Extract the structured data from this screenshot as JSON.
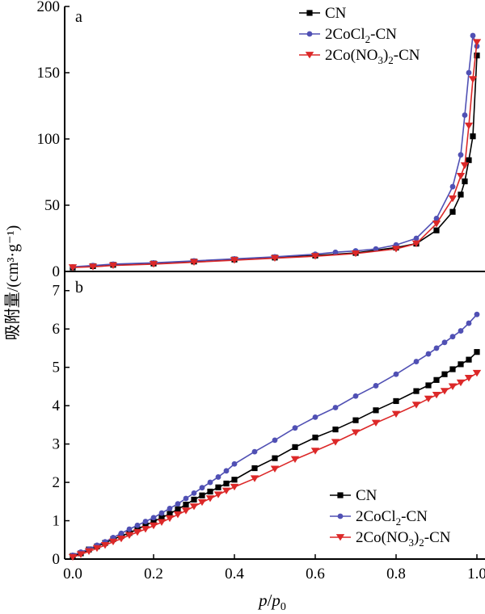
{
  "chart_data": [
    {
      "type": "line",
      "panel": "a",
      "xlabel": "p/p0",
      "ylabel": "吸附量/(cm³·g⁻¹)",
      "xlim": [
        -0.02,
        1.02
      ],
      "ylim": [
        0,
        200
      ],
      "yticks": [
        0,
        50,
        100,
        150,
        200
      ],
      "legend": "top-right",
      "series": [
        {
          "name": "CN",
          "color": "#000000",
          "marker": "square",
          "points": [
            [
              0.0,
              3
            ],
            [
              0.05,
              4
            ],
            [
              0.1,
              5
            ],
            [
              0.2,
              6
            ],
            [
              0.3,
              7.5
            ],
            [
              0.4,
              9
            ],
            [
              0.5,
              10.5
            ],
            [
              0.6,
              12
            ],
            [
              0.7,
              14
            ],
            [
              0.8,
              18
            ],
            [
              0.85,
              21
            ],
            [
              0.9,
              31
            ],
            [
              0.94,
              45
            ],
            [
              0.96,
              58
            ],
            [
              0.97,
              68
            ],
            [
              0.98,
              84
            ],
            [
              0.99,
              102
            ],
            [
              1.0,
              163
            ]
          ]
        },
        {
          "name": "2CoCl2-CN",
          "color": "#5050b4",
          "marker": "circle",
          "points": [
            [
              0.0,
              3.5
            ],
            [
              0.05,
              4.5
            ],
            [
              0.1,
              5.5
            ],
            [
              0.2,
              6.5
            ],
            [
              0.3,
              8
            ],
            [
              0.4,
              9.5
            ],
            [
              0.5,
              11
            ],
            [
              0.6,
              13
            ],
            [
              0.65,
              14.5
            ],
            [
              0.7,
              15.5
            ],
            [
              0.75,
              17
            ],
            [
              0.8,
              20
            ],
            [
              0.85,
              25
            ],
            [
              0.9,
              40
            ],
            [
              0.94,
              64
            ],
            [
              0.96,
              88
            ],
            [
              0.97,
              118
            ],
            [
              0.98,
              150
            ],
            [
              0.99,
              178
            ],
            [
              1.0,
              170
            ]
          ]
        },
        {
          "name": "2Co(NO3)2-CN",
          "color": "#dc2828",
          "marker": "triangle-down",
          "points": [
            [
              0.0,
              3
            ],
            [
              0.05,
              3.5
            ],
            [
              0.1,
              4.5
            ],
            [
              0.2,
              5.5
            ],
            [
              0.3,
              7
            ],
            [
              0.4,
              8.5
            ],
            [
              0.5,
              10
            ],
            [
              0.6,
              11.5
            ],
            [
              0.7,
              13.5
            ],
            [
              0.8,
              17
            ],
            [
              0.85,
              21
            ],
            [
              0.9,
              36
            ],
            [
              0.94,
              55
            ],
            [
              0.96,
              72
            ],
            [
              0.97,
              80
            ],
            [
              0.98,
              110
            ],
            [
              0.99,
              145
            ],
            [
              1.0,
              173
            ]
          ]
        }
      ]
    },
    {
      "type": "line",
      "panel": "b",
      "xlabel": "p/p0",
      "ylabel": "吸附量/(cm³·g⁻¹)",
      "xlim": [
        -0.02,
        1.02
      ],
      "ylim": [
        0,
        7.5
      ],
      "xticks": [
        0.0,
        0.2,
        0.4,
        0.6,
        0.8,
        1.0
      ],
      "xtick_labels": [
        "0.0",
        "0.2",
        "0.4",
        "0.6",
        "0.8",
        "1.0"
      ],
      "yticks": [
        0,
        1,
        2,
        3,
        4,
        5,
        6,
        7
      ],
      "legend": "bottom-right",
      "series": [
        {
          "name": "CN",
          "color": "#000000",
          "marker": "square",
          "points": [
            [
              0.0,
              0.08
            ],
            [
              0.02,
              0.15
            ],
            [
              0.04,
              0.25
            ],
            [
              0.06,
              0.33
            ],
            [
              0.08,
              0.42
            ],
            [
              0.1,
              0.52
            ],
            [
              0.12,
              0.6
            ],
            [
              0.14,
              0.68
            ],
            [
              0.16,
              0.78
            ],
            [
              0.18,
              0.88
            ],
            [
              0.2,
              0.98
            ],
            [
              0.22,
              1.08
            ],
            [
              0.24,
              1.18
            ],
            [
              0.26,
              1.3
            ],
            [
              0.28,
              1.42
            ],
            [
              0.3,
              1.55
            ],
            [
              0.32,
              1.66
            ],
            [
              0.34,
              1.76
            ],
            [
              0.36,
              1.87
            ],
            [
              0.38,
              1.97
            ],
            [
              0.4,
              2.07
            ],
            [
              0.45,
              2.37
            ],
            [
              0.5,
              2.63
            ],
            [
              0.55,
              2.92
            ],
            [
              0.6,
              3.17
            ],
            [
              0.65,
              3.38
            ],
            [
              0.7,
              3.62
            ],
            [
              0.75,
              3.88
            ],
            [
              0.8,
              4.12
            ],
            [
              0.85,
              4.38
            ],
            [
              0.88,
              4.53
            ],
            [
              0.9,
              4.67
            ],
            [
              0.92,
              4.82
            ],
            [
              0.94,
              4.95
            ],
            [
              0.96,
              5.08
            ],
            [
              0.98,
              5.2
            ],
            [
              1.0,
              5.4
            ]
          ]
        },
        {
          "name": "2CoCl2-CN",
          "color": "#5050b4",
          "marker": "circle",
          "points": [
            [
              0.0,
              0.1
            ],
            [
              0.02,
              0.18
            ],
            [
              0.04,
              0.26
            ],
            [
              0.06,
              0.36
            ],
            [
              0.08,
              0.45
            ],
            [
              0.1,
              0.56
            ],
            [
              0.12,
              0.67
            ],
            [
              0.14,
              0.78
            ],
            [
              0.16,
              0.88
            ],
            [
              0.18,
              0.98
            ],
            [
              0.2,
              1.08
            ],
            [
              0.22,
              1.2
            ],
            [
              0.24,
              1.32
            ],
            [
              0.26,
              1.44
            ],
            [
              0.28,
              1.58
            ],
            [
              0.3,
              1.72
            ],
            [
              0.32,
              1.86
            ],
            [
              0.34,
              2.0
            ],
            [
              0.36,
              2.14
            ],
            [
              0.38,
              2.3
            ],
            [
              0.4,
              2.48
            ],
            [
              0.45,
              2.8
            ],
            [
              0.5,
              3.1
            ],
            [
              0.55,
              3.42
            ],
            [
              0.6,
              3.7
            ],
            [
              0.65,
              3.95
            ],
            [
              0.7,
              4.25
            ],
            [
              0.75,
              4.52
            ],
            [
              0.8,
              4.82
            ],
            [
              0.85,
              5.15
            ],
            [
              0.88,
              5.35
            ],
            [
              0.9,
              5.5
            ],
            [
              0.92,
              5.65
            ],
            [
              0.94,
              5.8
            ],
            [
              0.96,
              5.95
            ],
            [
              0.98,
              6.15
            ],
            [
              1.0,
              6.38
            ]
          ]
        },
        {
          "name": "2Co(NO3)2-CN",
          "color": "#dc2828",
          "marker": "triangle-down",
          "points": [
            [
              0.0,
              0.05
            ],
            [
              0.02,
              0.12
            ],
            [
              0.04,
              0.2
            ],
            [
              0.06,
              0.28
            ],
            [
              0.08,
              0.36
            ],
            [
              0.1,
              0.45
            ],
            [
              0.12,
              0.53
            ],
            [
              0.14,
              0.62
            ],
            [
              0.16,
              0.7
            ],
            [
              0.18,
              0.78
            ],
            [
              0.2,
              0.87
            ],
            [
              0.22,
              0.96
            ],
            [
              0.24,
              1.06
            ],
            [
              0.26,
              1.16
            ],
            [
              0.28,
              1.26
            ],
            [
              0.3,
              1.37
            ],
            [
              0.32,
              1.48
            ],
            [
              0.34,
              1.58
            ],
            [
              0.36,
              1.68
            ],
            [
              0.38,
              1.78
            ],
            [
              0.4,
              1.88
            ],
            [
              0.45,
              2.1
            ],
            [
              0.5,
              2.35
            ],
            [
              0.55,
              2.6
            ],
            [
              0.6,
              2.82
            ],
            [
              0.65,
              3.05
            ],
            [
              0.7,
              3.3
            ],
            [
              0.75,
              3.55
            ],
            [
              0.8,
              3.78
            ],
            [
              0.85,
              4.02
            ],
            [
              0.88,
              4.18
            ],
            [
              0.9,
              4.28
            ],
            [
              0.92,
              4.38
            ],
            [
              0.94,
              4.5
            ],
            [
              0.96,
              4.6
            ],
            [
              0.98,
              4.72
            ],
            [
              1.0,
              4.85
            ]
          ]
        }
      ]
    }
  ],
  "axis": {
    "ylabel": "吸附量/(cm³·g⁻¹)",
    "xlabel_main": "p",
    "xlabel_sub": "p",
    "xlabel_sub_index": "0"
  },
  "panels": {
    "a": "a",
    "b": "b"
  },
  "legend_a": [
    {
      "pre": "CN"
    },
    {
      "pre": "2CoCl",
      "sub": "2",
      "post": "-CN"
    },
    {
      "pre": "2Co(NO",
      "sub": "3",
      "post": ")",
      "sub2": "2",
      "post2": "-CN"
    }
  ],
  "legend_b": [
    {
      "pre": "CN"
    },
    {
      "pre": "2CoCl",
      "sub": "2",
      "post": "-CN"
    },
    {
      "pre": "2Co(NO",
      "sub": "3",
      "post": ")",
      "sub2": "2",
      "post2": "-CN"
    }
  ]
}
